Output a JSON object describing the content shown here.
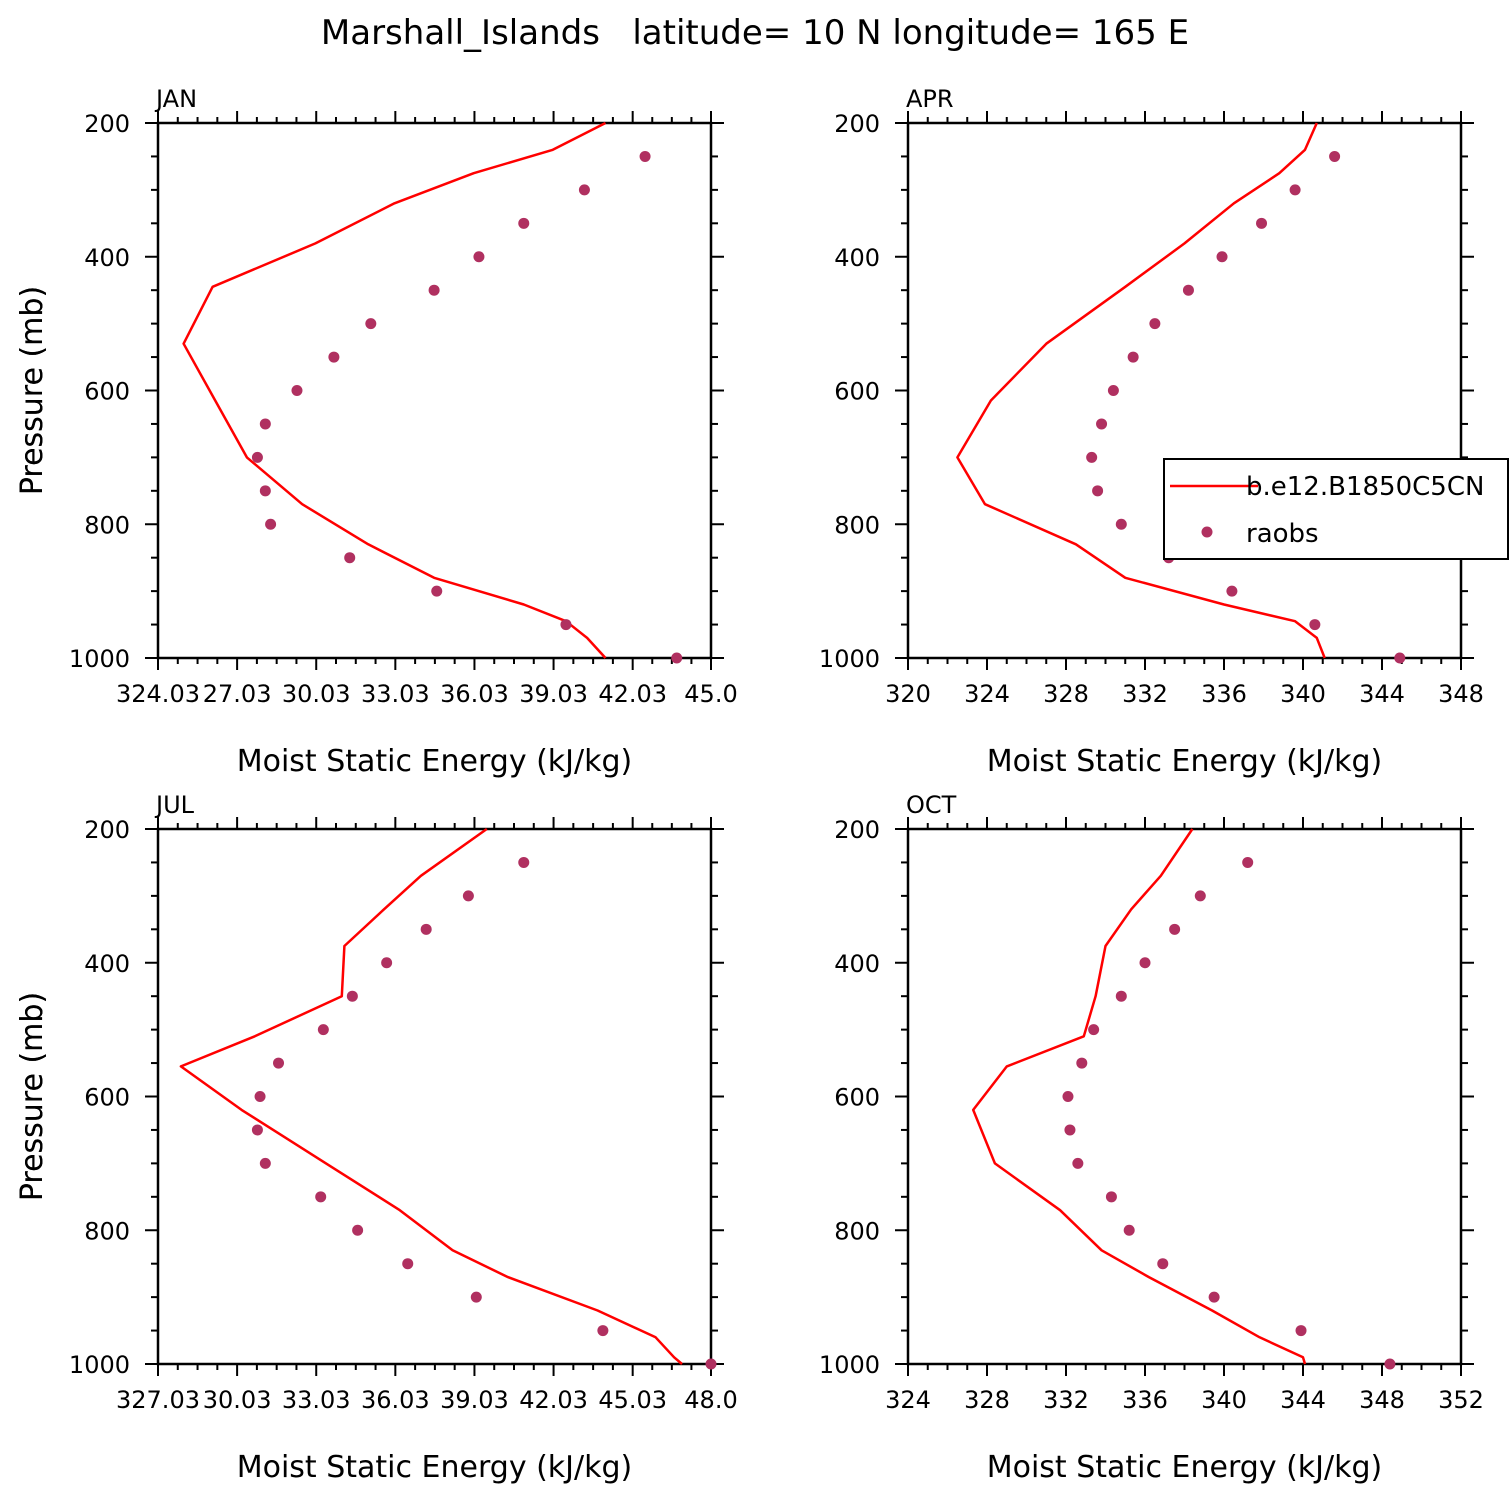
{
  "title": "Marshall_Islands   latitude= 10 N longitude= 165 E",
  "legend": {
    "model_label": "b.e12.B1850C5CN",
    "obs_label": "raobs"
  },
  "colors": {
    "model": "#ff0000",
    "obs": "#b03060"
  },
  "chart_data": [
    {
      "type": "line",
      "panel": "JAN",
      "xlabel": "Moist Static Energy (kJ/kg)",
      "ylabel": "Pressure (mb)",
      "xlim": [
        324.03,
        345.0
      ],
      "xticks": [
        324.03,
        327.03,
        330.03,
        333.03,
        336.03,
        339.03,
        342.03,
        345.0
      ],
      "xtick_labels": [
        "324.03",
        "27.03",
        "30.03",
        "33.03",
        "36.03",
        "39.03",
        "42.03",
        "45.0"
      ],
      "ylim": [
        1000,
        200
      ],
      "yticks": [
        200,
        400,
        600,
        800,
        1000
      ],
      "series": [
        {
          "name": "b.e12.B1850C5CN",
          "kind": "line",
          "x": [
            341.0,
            340.3,
            339.5,
            337.9,
            334.5,
            332.0,
            329.5,
            327.4,
            326.2,
            325.0,
            326.1,
            330.0,
            333.0,
            336.0,
            339.0,
            341.0
          ],
          "y": [
            1000,
            970,
            945,
            920,
            880,
            830,
            770,
            700,
            615,
            530,
            445,
            380,
            320,
            275,
            240,
            200
          ]
        },
        {
          "name": "raobs",
          "kind": "scatter",
          "x": [
            343.7,
            339.5,
            334.6,
            331.3,
            328.3,
            328.1,
            327.8,
            328.1,
            329.3,
            330.7,
            332.1,
            334.5,
            336.2,
            337.9,
            340.2,
            342.5
          ],
          "y": [
            1000,
            950,
            900,
            850,
            800,
            750,
            700,
            650,
            600,
            550,
            500,
            450,
            400,
            350,
            300,
            250
          ]
        }
      ]
    },
    {
      "type": "line",
      "panel": "APR",
      "xlabel": "Moist Static Energy (kJ/kg)",
      "ylabel": "Pressure (mb)",
      "xlim": [
        320,
        348
      ],
      "xticks": [
        320,
        324,
        328,
        332,
        336,
        340,
        344,
        348
      ],
      "xtick_labels": [
        "320",
        "324",
        "328",
        "332",
        "336",
        "340",
        "344",
        "348"
      ],
      "ylim": [
        1000,
        200
      ],
      "yticks": [
        200,
        400,
        600,
        800,
        1000
      ],
      "series": [
        {
          "name": "b.e12.B1850C5CN",
          "kind": "line",
          "x": [
            341.1,
            340.7,
            339.6,
            336.0,
            331.0,
            328.5,
            323.9,
            322.5,
            324.2,
            327.0,
            331.0,
            334.0,
            336.5,
            338.8,
            340.1,
            340.7
          ],
          "y": [
            1000,
            970,
            945,
            920,
            880,
            830,
            770,
            700,
            615,
            530,
            445,
            380,
            320,
            275,
            240,
            200
          ]
        },
        {
          "name": "raobs",
          "kind": "scatter",
          "x": [
            344.9,
            340.6,
            336.4,
            333.2,
            330.8,
            329.6,
            329.3,
            329.8,
            330.4,
            331.4,
            332.5,
            334.2,
            335.9,
            337.9,
            339.6,
            341.6
          ],
          "y": [
            1000,
            950,
            900,
            850,
            800,
            750,
            700,
            650,
            600,
            550,
            500,
            450,
            400,
            350,
            300,
            250
          ]
        }
      ]
    },
    {
      "type": "line",
      "panel": "JUL",
      "xlabel": "Moist Static Energy (kJ/kg)",
      "ylabel": "Pressure (mb)",
      "xlim": [
        327.03,
        348.0
      ],
      "xticks": [
        327.03,
        330.03,
        333.03,
        336.03,
        339.03,
        342.03,
        345.03,
        348.0
      ],
      "xtick_labels": [
        "327.03",
        "30.03",
        "33.03",
        "36.03",
        "39.03",
        "42.03",
        "45.03",
        "48.0"
      ],
      "ylim": [
        1000,
        200
      ],
      "yticks": [
        200,
        400,
        600,
        800,
        1000
      ],
      "series": [
        {
          "name": "b.e12.B1850C5CN",
          "kind": "line",
          "x": [
            346.9,
            346.6,
            345.9,
            343.7,
            340.3,
            338.2,
            336.2,
            333.4,
            330.2,
            327.9,
            330.7,
            334.0,
            334.1,
            335.6,
            337.0,
            339.5
          ],
          "y": [
            1000,
            990,
            960,
            920,
            870,
            830,
            770,
            700,
            620,
            555,
            510,
            450,
            375,
            320,
            270,
            200
          ]
        },
        {
          "name": "raobs",
          "kind": "scatter",
          "x": [
            348.0,
            343.9,
            339.1,
            336.5,
            334.6,
            333.2,
            331.1,
            330.8,
            330.9,
            331.6,
            333.3,
            334.4,
            335.7,
            337.2,
            338.8,
            340.9
          ],
          "y": [
            1000,
            950,
            900,
            850,
            800,
            750,
            700,
            650,
            600,
            550,
            500,
            450,
            400,
            350,
            300,
            250
          ]
        }
      ]
    },
    {
      "type": "line",
      "panel": "OCT",
      "xlabel": "Moist Static Energy (kJ/kg)",
      "ylabel": "Pressure (mb)",
      "xlim": [
        324,
        352
      ],
      "xticks": [
        324,
        328,
        332,
        336,
        340,
        344,
        348,
        352
      ],
      "xtick_labels": [
        "324",
        "328",
        "332",
        "336",
        "340",
        "344",
        "348",
        "352"
      ],
      "ylim": [
        1000,
        200
      ],
      "yticks": [
        200,
        400,
        600,
        800,
        1000
      ],
      "series": [
        {
          "name": "b.e12.B1850C5CN",
          "kind": "line",
          "x": [
            344.1,
            344.0,
            341.8,
            339.4,
            336.2,
            333.8,
            331.7,
            328.4,
            327.3,
            329.0,
            332.9,
            333.5,
            334.0,
            335.3,
            336.8,
            338.4
          ],
          "y": [
            1000,
            990,
            960,
            920,
            870,
            830,
            770,
            700,
            620,
            555,
            510,
            450,
            375,
            320,
            270,
            200
          ]
        },
        {
          "name": "raobs",
          "kind": "scatter",
          "x": [
            348.4,
            343.9,
            339.5,
            336.9,
            335.2,
            334.3,
            332.6,
            332.2,
            332.1,
            332.8,
            333.4,
            334.8,
            336.0,
            337.5,
            338.8,
            341.2
          ],
          "y": [
            1000,
            950,
            900,
            850,
            800,
            750,
            700,
            650,
            600,
            550,
            500,
            450,
            400,
            350,
            300,
            250
          ]
        }
      ]
    }
  ]
}
